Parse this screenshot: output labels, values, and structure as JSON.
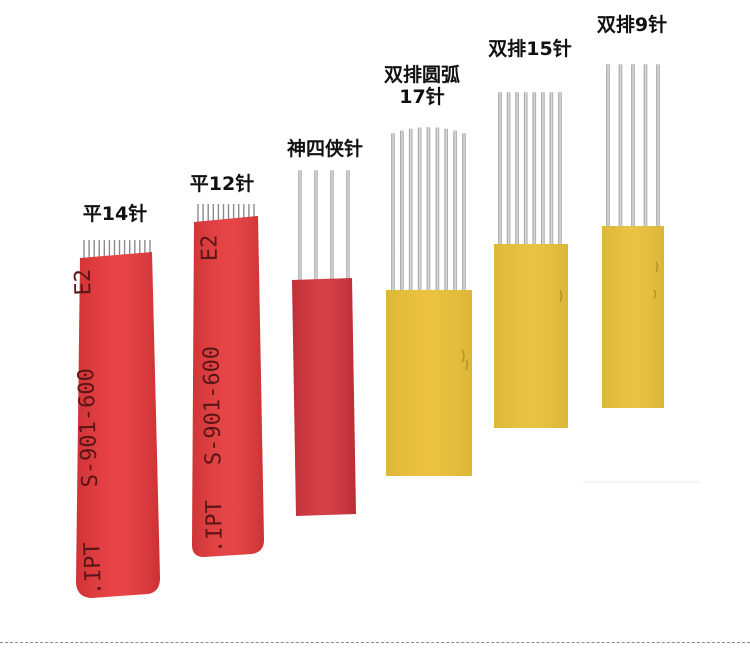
{
  "products": [
    {
      "id": "flat-14",
      "label": "平14针",
      "needle_count": 14,
      "body_color": "#e8383b",
      "print_lines": [
        "E2",
        "S-901-600",
        ".IPT"
      ]
    },
    {
      "id": "flat-12",
      "label": "平12针",
      "needle_count": 12,
      "body_color": "#e63a3c",
      "print_lines": [
        "E2",
        "S-901-600",
        ".IPT"
      ]
    },
    {
      "id": "shen-four-xia",
      "label": "神四侠针",
      "needle_count": 4,
      "body_color": "#d3343c"
    },
    {
      "id": "double-row-arc-17",
      "label_line1": "双排圆弧",
      "label_line2": "17针",
      "needle_count": 9,
      "body_color": "#eac13a"
    },
    {
      "id": "double-row-15",
      "label": "双排15针",
      "needle_count": 8,
      "body_color": "#e8c13c"
    },
    {
      "id": "double-row-9",
      "label": "双排9针",
      "needle_count": 5,
      "body_color": "#e8c13c"
    }
  ]
}
